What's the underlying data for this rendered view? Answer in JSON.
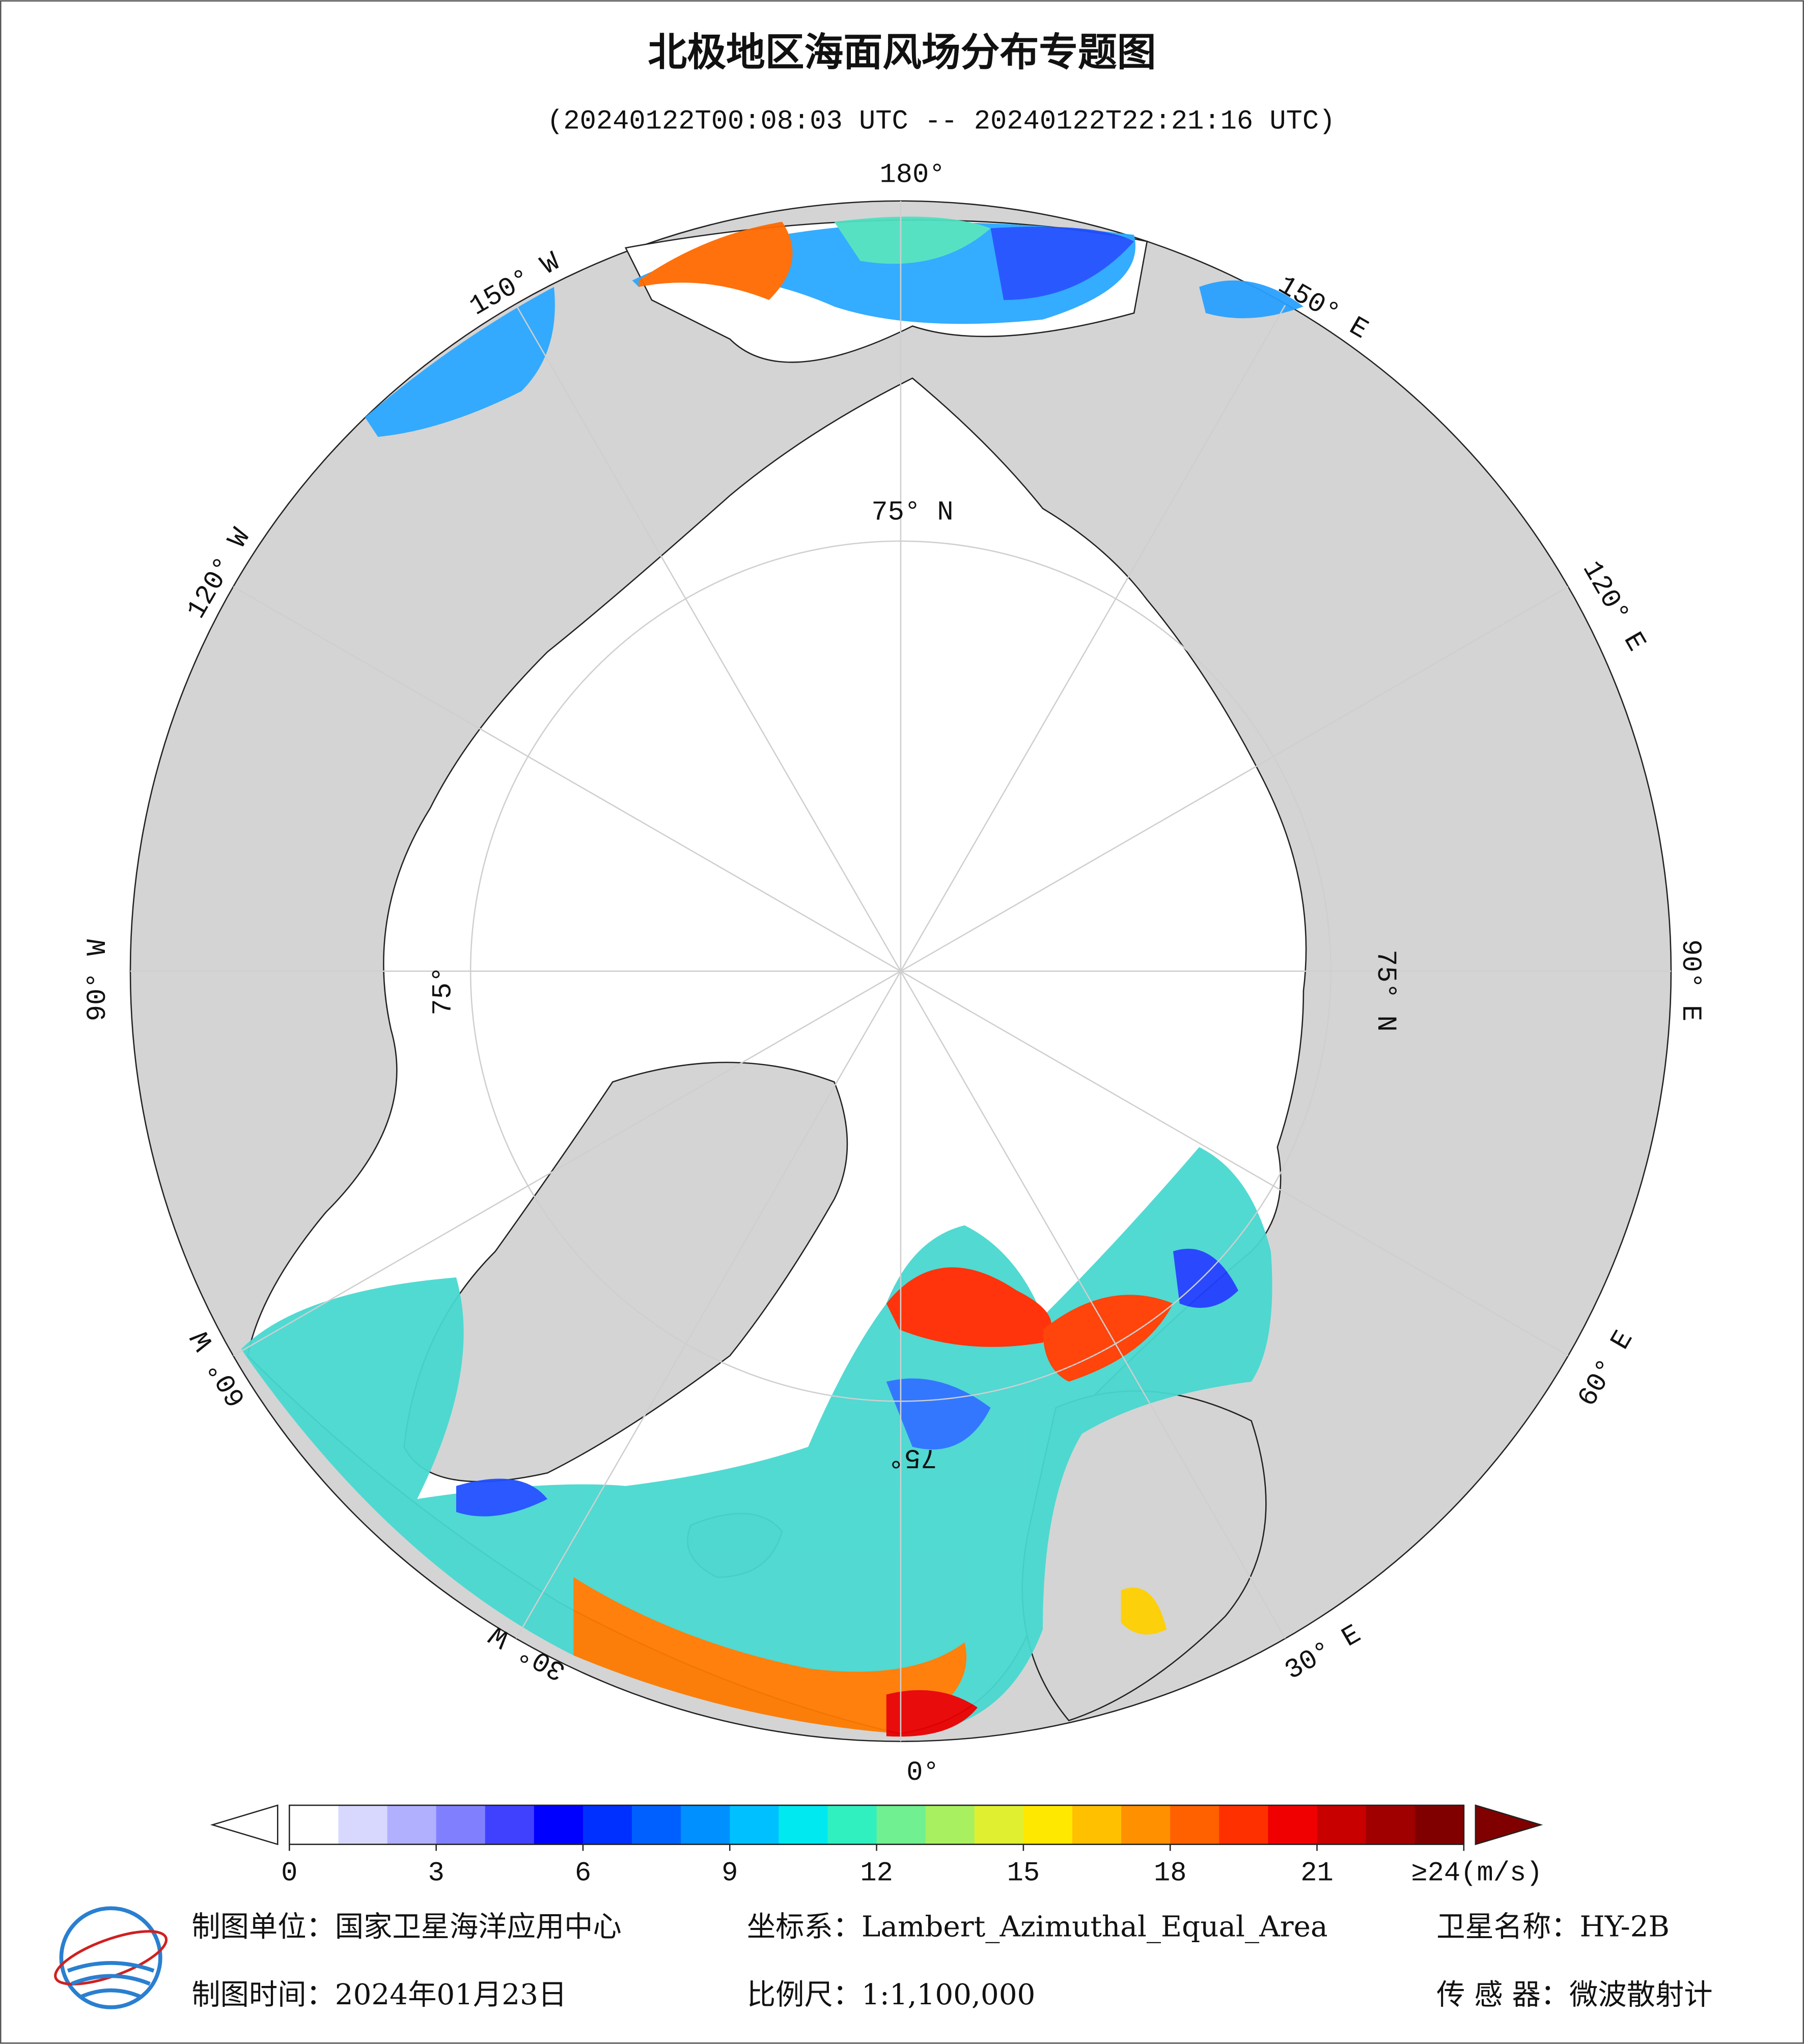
{
  "header": {
    "title": "北极地区海面风场分布专题图",
    "subtitle": "(20240122T00:08:03 UTC -- 20240122T22:21:16 UTC)"
  },
  "map": {
    "longitude_labels": [
      "180°",
      "150° E",
      "120° E",
      "90° E",
      "60° E",
      "30° E",
      "0°",
      "30° W",
      "60° W",
      "90° W",
      "120° W",
      "150° W"
    ],
    "latitude_labels": [
      "75° N",
      "75° N",
      "75°",
      "75°"
    ]
  },
  "colorbar": {
    "range": [
      0,
      24
    ],
    "ticks": [
      0,
      3,
      6,
      9,
      12,
      15,
      18,
      21,
      {
        "value": 24,
        "label": "≥24(m/s)"
      }
    ],
    "colors": [
      "#ffffff",
      "#d8d8ff",
      "#b0b0ff",
      "#8080ff",
      "#4040ff",
      "#0000ff",
      "#0030ff",
      "#0060ff",
      "#0090ff",
      "#00c0ff",
      "#00e8f0",
      "#30f0c0",
      "#70f090",
      "#a8f060",
      "#e0f030",
      "#ffe800",
      "#ffc000",
      "#ff9000",
      "#ff6000",
      "#ff3000",
      "#f00000",
      "#c80000",
      "#a00000",
      "#800000"
    ]
  },
  "footer": {
    "unit": "制图单位：国家卫星海洋应用中心",
    "projection": "坐标系：Lambert_Azimuthal_Equal_Area",
    "satellite": "卫星名称：HY-2B",
    "date": "制图时间：2024年01月23日",
    "scale": "比例尺：1:1,100,000",
    "sensor": "传 感 器：微波散射计"
  }
}
